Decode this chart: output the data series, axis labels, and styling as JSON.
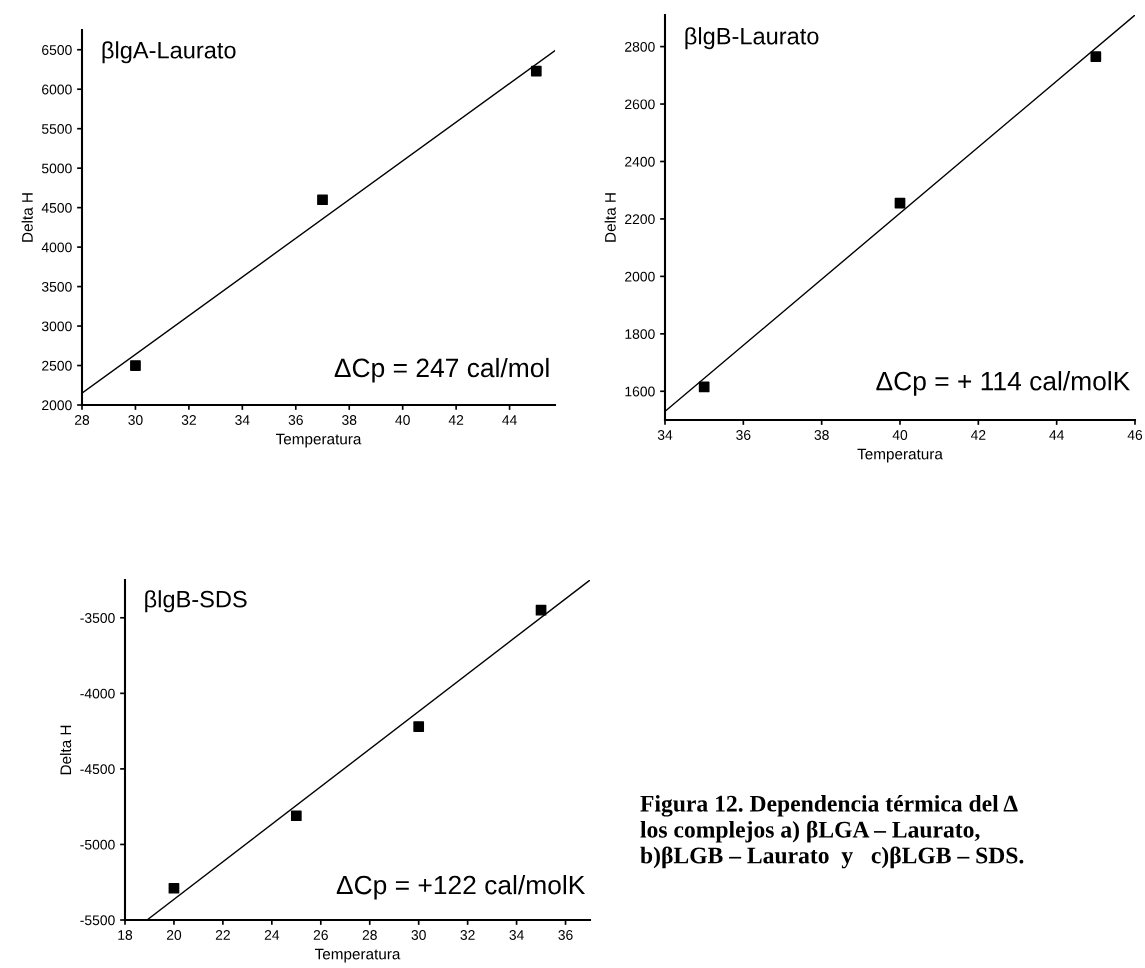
{
  "chart_data": [
    {
      "type": "scatter",
      "xlabel": "Temperatura",
      "ylabel": "Delta H",
      "grid": false,
      "legend": false,
      "xlim": [
        28,
        45.7
      ],
      "ylim": [
        2000,
        6750
      ],
      "xticks": [
        28,
        30,
        32,
        34,
        36,
        38,
        40,
        42,
        44
      ],
      "yticks": [
        2000,
        2500,
        3000,
        3500,
        4000,
        4500,
        5000,
        5500,
        6000,
        6500
      ],
      "annotations": [
        "βlgA-Laurato",
        "ΔCp = 247 cal/mol"
      ],
      "series": [
        {
          "type": "scatter",
          "marker": "square",
          "color": "#000000",
          "x": [
            30,
            37,
            45
          ],
          "values": [
            2500,
            4600,
            6230
          ]
        },
        {
          "type": "line",
          "marker": "none",
          "color": "#000000",
          "x": [
            28,
            45.7
          ],
          "values": [
            2150,
            6490
          ]
        }
      ]
    },
    {
      "type": "scatter",
      "xlabel": "Temperatura",
      "ylabel": "Delta H",
      "grid": false,
      "legend": false,
      "xlim": [
        34,
        46
      ],
      "ylim": [
        1500,
        2910
      ],
      "xticks": [
        34,
        36,
        38,
        40,
        42,
        44,
        46
      ],
      "yticks": [
        1600,
        1800,
        2000,
        2200,
        2400,
        2600,
        2800
      ],
      "annotations": [
        "βlgB-Laurato",
        "ΔCp = + 114 cal/molK"
      ],
      "series": [
        {
          "type": "scatter",
          "marker": "square",
          "color": "#000000",
          "x": [
            35,
            40,
            45
          ],
          "values": [
            1615,
            2255,
            2765
          ]
        },
        {
          "type": "line",
          "marker": "none",
          "color": "#000000",
          "x": [
            34,
            46
          ],
          "values": [
            1530,
            2910
          ]
        }
      ]
    },
    {
      "type": "scatter",
      "xlabel": "Temperatura",
      "ylabel": "Delta H",
      "grid": false,
      "legend": false,
      "xlim": [
        18,
        37
      ],
      "ylim": [
        -5500,
        -3250
      ],
      "xticks": [
        18,
        20,
        22,
        24,
        26,
        28,
        30,
        32,
        34,
        36
      ],
      "yticks": [
        {
          "value": -5500,
          "label": "-5500"
        },
        {
          "value": -5000,
          "label": "-5000"
        },
        {
          "value": -4500,
          "label": "-4500"
        },
        {
          "value": -4000,
          "label": "-4000"
        },
        {
          "value": -3500,
          "label": "-3500"
        }
      ],
      "annotations": [
        "βlgB-SDS",
        "ΔCp = +122 cal/molK"
      ],
      "series": [
        {
          "type": "scatter",
          "marker": "square",
          "color": "#000000",
          "x": [
            20,
            25,
            30,
            35
          ],
          "values": [
            -5290,
            -4810,
            -4220,
            -3450
          ]
        },
        {
          "type": "line",
          "marker": "none",
          "color": "#000000",
          "x": [
            18.9,
            37
          ],
          "values": [
            -5500,
            -3250
          ]
        }
      ]
    },
    {
      "type": "other",
      "annotations": [
        "Figura 12. Dependencia térmica del Δ\nlos complejos a) βLGA – Laurato,\nb)βLGB – Laurato  y   c)βLGB – SDS."
      ]
    }
  ]
}
